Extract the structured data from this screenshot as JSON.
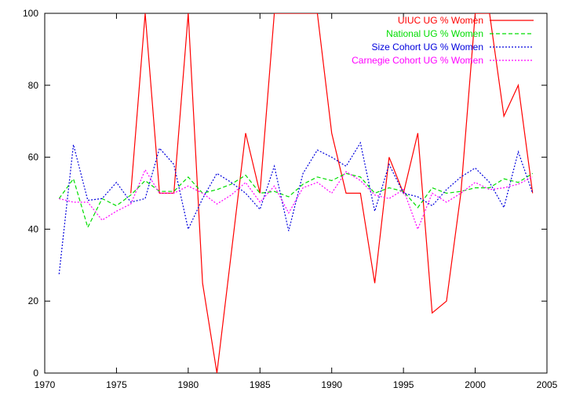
{
  "chart_data": {
    "type": "line",
    "title": "",
    "xlabel": "",
    "ylabel": "",
    "xlim": [
      1970,
      2005
    ],
    "ylim": [
      0,
      100
    ],
    "x_ticks": [
      1970,
      1975,
      1980,
      1985,
      1990,
      1995,
      2000,
      2005
    ],
    "y_ticks": [
      0,
      20,
      40,
      60,
      80,
      100
    ],
    "grid": false,
    "legend_position": "top-right",
    "x": [
      1971,
      1972,
      1973,
      1974,
      1975,
      1976,
      1977,
      1978,
      1979,
      1980,
      1981,
      1982,
      1983,
      1984,
      1985,
      1986,
      1987,
      1988,
      1989,
      1990,
      1991,
      1992,
      1993,
      1994,
      1995,
      1996,
      1997,
      1998,
      1999,
      2000,
      2001,
      2002,
      2003,
      2004
    ],
    "series": [
      {
        "name": "UIUC UG % Women",
        "color": "#ff0000",
        "dash": "solid",
        "values": [
          null,
          null,
          null,
          null,
          null,
          50,
          100,
          50,
          50,
          100,
          25,
          0,
          33.3,
          66.7,
          50,
          100,
          100,
          100,
          100,
          66.7,
          50,
          50,
          25,
          60,
          50,
          66.7,
          16.7,
          20,
          50,
          100,
          100,
          71.4,
          80,
          50
        ]
      },
      {
        "name": "National UG % Women",
        "color": "#00dd00",
        "dash": "dashed",
        "values": [
          48.5,
          54,
          40.5,
          48.5,
          46.5,
          49.5,
          53.5,
          50.5,
          50.5,
          54.5,
          50,
          51,
          52.5,
          55,
          50,
          50.5,
          49,
          52.5,
          54.5,
          53.5,
          55.5,
          54.5,
          50,
          51.5,
          50.5,
          46,
          51.5,
          50,
          50.5,
          51.5,
          51.5,
          54,
          53,
          55.5
        ]
      },
      {
        "name": "Size Cohort UG % Women",
        "color": "#0000dd",
        "dash": "dotted",
        "values": [
          27.5,
          63.5,
          48,
          48.5,
          53,
          47.5,
          48.5,
          62.5,
          58,
          40,
          48.5,
          55.5,
          53,
          50,
          45.5,
          57.5,
          39.5,
          55.5,
          62,
          60,
          57.5,
          64,
          45,
          58,
          50,
          49,
          46.5,
          51,
          54.5,
          57,
          53,
          46,
          61.5,
          50
        ]
      },
      {
        "name": "Carnegie Cohort UG % Women",
        "color": "#ff00ff",
        "dash": "dotted",
        "values": [
          48.5,
          47.5,
          47.5,
          42.5,
          45,
          47,
          56.5,
          50,
          50,
          52,
          50,
          47,
          49.5,
          53,
          47.5,
          52,
          44.5,
          51.5,
          53,
          50,
          56,
          53.5,
          49.5,
          48.5,
          51,
          40,
          50,
          47.5,
          50,
          53,
          51,
          51.5,
          52.5,
          54.5
        ]
      }
    ]
  }
}
